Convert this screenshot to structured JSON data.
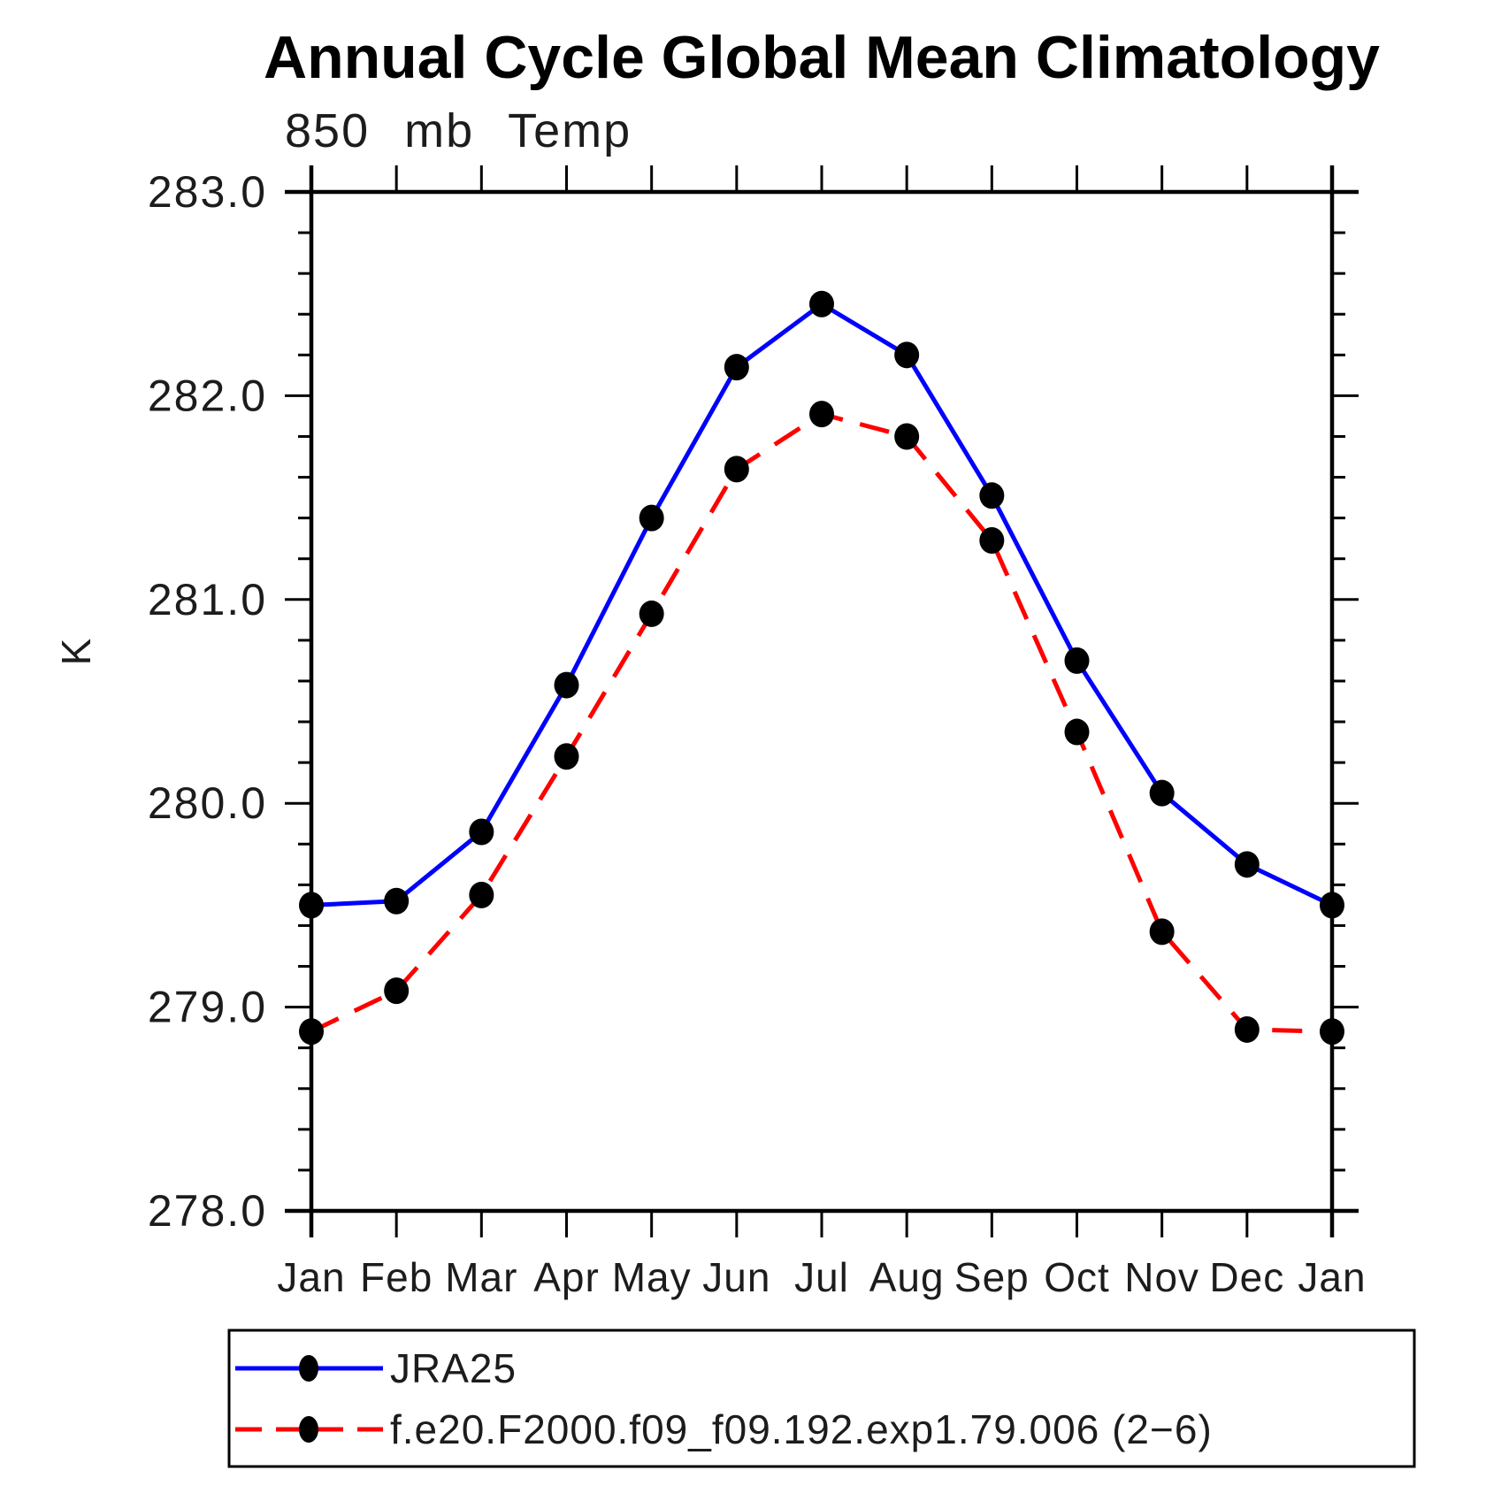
{
  "chart_data": {
    "type": "line",
    "title": "Annual Cycle Global Mean Climatology",
    "subtitle": "850 mb Temp",
    "ylabel": "K",
    "categories": [
      "Jan",
      "Feb",
      "Mar",
      "Apr",
      "May",
      "Jun",
      "Jul",
      "Aug",
      "Sep",
      "Oct",
      "Nov",
      "Dec",
      "Jan"
    ],
    "ylim": [
      278.0,
      283.0
    ],
    "ytick_values": [
      283.0,
      282.0,
      281.0,
      280.0,
      279.0,
      278.0
    ],
    "ytick_labels": [
      "283.0",
      "282.0",
      "281.0",
      "280.0",
      "279.0",
      "278.0"
    ],
    "minor_tick_step": 0.2,
    "grid": false,
    "legend_position": "below-axis-boxed",
    "marker_color": "#000000",
    "series": [
      {
        "name": "JRA25",
        "color": "#0000ff",
        "style": "solid",
        "marker": "filled-circle",
        "values": [
          279.5,
          279.52,
          279.86,
          280.58,
          281.4,
          282.14,
          282.45,
          282.2,
          281.51,
          280.7,
          280.05,
          279.7,
          279.5
        ]
      },
      {
        "name": "f.e20.F2000.f09_f09.192.exp1.79.006 (2−6)",
        "color": "#ff0000",
        "style": "dashed",
        "marker": "filled-circle",
        "values": [
          278.88,
          279.08,
          279.55,
          280.23,
          280.93,
          281.64,
          281.91,
          281.8,
          281.29,
          280.35,
          279.37,
          278.89,
          278.88
        ]
      }
    ]
  }
}
